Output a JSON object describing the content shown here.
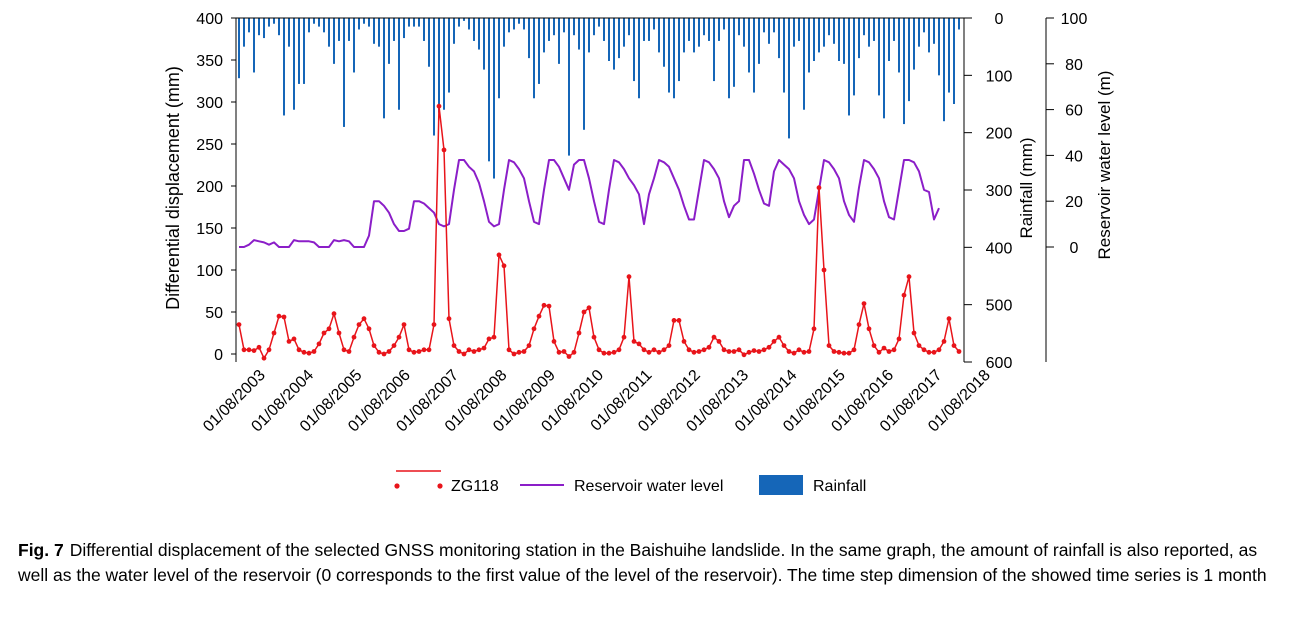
{
  "chart_data": {
    "type": "line",
    "title": "",
    "y_left": {
      "label": "Differential displacement (mm)",
      "range": [
        0,
        400
      ],
      "ticks": [
        0,
        50,
        100,
        150,
        200,
        250,
        300,
        350,
        400
      ]
    },
    "y_rain": {
      "label": "Rainfall (mm)",
      "range": [
        0,
        600
      ],
      "ticks": [
        0,
        100,
        200,
        300,
        400,
        500,
        600
      ],
      "inverted": true
    },
    "y_water": {
      "label": "Reservoir water level (m)",
      "range": [
        -50,
        100
      ],
      "ticks": [
        0,
        20,
        40,
        60,
        80,
        100
      ]
    },
    "x_tick_labels": [
      "01/08/2003",
      "01/08/2004",
      "01/08/2005",
      "01/08/2006",
      "01/08/2007",
      "01/08/2008",
      "01/08/2009",
      "01/08/2010",
      "01/08/2011",
      "01/08/2012",
      "01/08/2013",
      "01/08/2014",
      "01/08/2015",
      "01/08/2016",
      "01/08/2017",
      "01/08/2018"
    ],
    "time_step": "1 month",
    "legend": [
      "ZG118",
      "Reservoir water level",
      "Rainfall"
    ],
    "colors": {
      "displacement": "#e8141a",
      "water": "#8b1ec8",
      "rainfall": "#1566b8"
    },
    "series": [
      {
        "name": "ZG118",
        "axis": "left",
        "values": [
          35,
          5,
          5,
          4,
          8,
          -5,
          5,
          25,
          45,
          44,
          15,
          18,
          5,
          2,
          1,
          3,
          12,
          25,
          30,
          48,
          25,
          5,
          3,
          20,
          35,
          42,
          30,
          10,
          2,
          0,
          3,
          10,
          20,
          35,
          5,
          2,
          3,
          5,
          5,
          35,
          295,
          243,
          42,
          10,
          3,
          0,
          5,
          3,
          5,
          7,
          18,
          20,
          118,
          105,
          5,
          0,
          2,
          3,
          10,
          30,
          45,
          58,
          57,
          15,
          2,
          3,
          -3,
          2,
          25,
          50,
          55,
          20,
          5,
          1,
          1,
          2,
          5,
          20,
          92,
          15,
          12,
          5,
          2,
          5,
          2,
          5,
          10,
          40,
          40,
          15,
          5,
          2,
          3,
          5,
          8,
          20,
          15,
          5,
          3,
          3,
          5,
          -1,
          2,
          4,
          3,
          5,
          8,
          15,
          20,
          10,
          3,
          1,
          5,
          2,
          3,
          30,
          198,
          100,
          10,
          3,
          2,
          1,
          1,
          5,
          35,
          60,
          30,
          10,
          2,
          7,
          3,
          5,
          18,
          70,
          92,
          25,
          10,
          5,
          2,
          2,
          5,
          15,
          42,
          10,
          3
        ]
      },
      {
        "name": "Reservoir water level",
        "axis": "water",
        "values": [
          0,
          0,
          1,
          3,
          2.5,
          2,
          1,
          2,
          0,
          0,
          0,
          3,
          2.5,
          2.5,
          2.5,
          2,
          0,
          0,
          0,
          3,
          2.5,
          3,
          2.5,
          0,
          0,
          0,
          5,
          20,
          20,
          18,
          15,
          10,
          7,
          7,
          8,
          20,
          20,
          19,
          17,
          15,
          10,
          9,
          10,
          25,
          38,
          38,
          35,
          33,
          28,
          20,
          11,
          9,
          10,
          25,
          38,
          37,
          34,
          30,
          20,
          11,
          10,
          25,
          38,
          38,
          35,
          30,
          25,
          36,
          38,
          38,
          30,
          20,
          11,
          10,
          25,
          38,
          37,
          34,
          30,
          27,
          23,
          10,
          23,
          30,
          38,
          37,
          35,
          30,
          25,
          18,
          12,
          12,
          25,
          38,
          37,
          34,
          30,
          20,
          13,
          18,
          20,
          38,
          38,
          32,
          25,
          19,
          18,
          33,
          38,
          36,
          34,
          30,
          20,
          14,
          10,
          12,
          25,
          38,
          37,
          34,
          30,
          20,
          14,
          11,
          26,
          38,
          37,
          34,
          30,
          20,
          13,
          12,
          25,
          38,
          38,
          37,
          33,
          25,
          24,
          12,
          17
        ]
      },
      {
        "name": "Rainfall",
        "axis": "rain",
        "type": "bar",
        "values": [
          105,
          50,
          25,
          95,
          30,
          35,
          15,
          10,
          30,
          170,
          50,
          160,
          115,
          115,
          25,
          10,
          15,
          25,
          50,
          80,
          40,
          190,
          40,
          95,
          20,
          10,
          15,
          45,
          50,
          175,
          80,
          40,
          160,
          35,
          15,
          15,
          15,
          40,
          85,
          205,
          165,
          160,
          130,
          45,
          15,
          5,
          20,
          40,
          55,
          90,
          250,
          280,
          140,
          50,
          25,
          20,
          10,
          20,
          70,
          140,
          115,
          60,
          40,
          30,
          80,
          25,
          240,
          30,
          55,
          195,
          60,
          30,
          15,
          40,
          75,
          90,
          70,
          50,
          30,
          110,
          140,
          40,
          40,
          20,
          60,
          85,
          130,
          140,
          110,
          60,
          40,
          60,
          50,
          30,
          40,
          110,
          40,
          20,
          140,
          120,
          30,
          50,
          95,
          130,
          80,
          25,
          45,
          25,
          70,
          130,
          210,
          50,
          40,
          160,
          95,
          75,
          60,
          50,
          30,
          45,
          75,
          80,
          170,
          135,
          70,
          30,
          50,
          40,
          135,
          175,
          75,
          40,
          95,
          185,
          145,
          90,
          50,
          25,
          60,
          45,
          100,
          180,
          130,
          150,
          20
        ]
      }
    ]
  },
  "caption": {
    "label": "Fig. 7",
    "text": "Differential displacement of the selected GNSS monitoring station in the Baishuihe landslide. In the same graph, the amount of rainfall is also reported, as well as the water level of the reservoir (0 corresponds to the first value of the level of the reservoir). The time step dimension of the showed time series is 1 month"
  }
}
